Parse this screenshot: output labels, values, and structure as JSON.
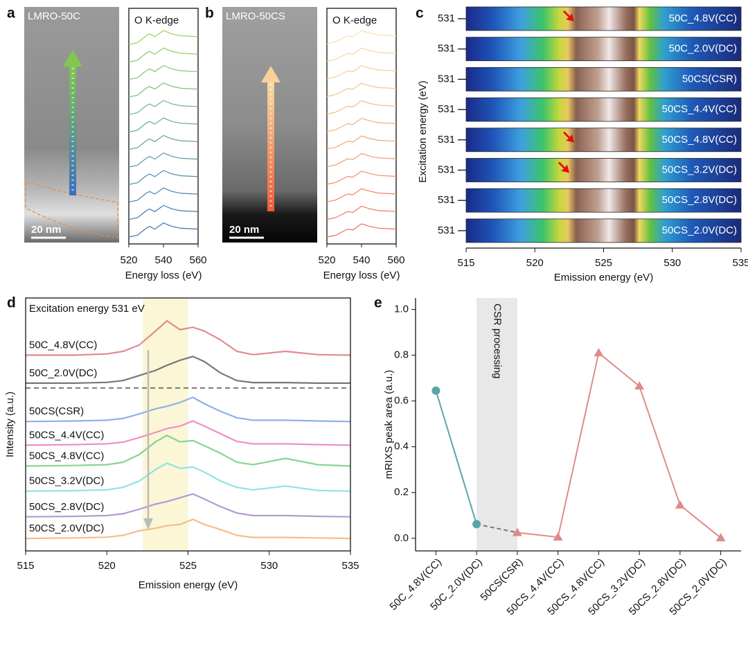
{
  "chart_data": [
    {
      "type": "image-spectra",
      "panel": "a",
      "image_label": "LMRO-50C",
      "scale_bar": "20 nm",
      "spectra_label": "O K-edge",
      "x": [
        520,
        525,
        530,
        532,
        535,
        540,
        545,
        550,
        560
      ],
      "xlim": [
        520,
        560
      ],
      "xticks": [
        520,
        540,
        560
      ],
      "xlabel": "Energy loss (eV)",
      "series": [
        {
          "color": "#3f6fb0",
          "values": [
            0,
            0.1,
            0.5,
            0.6,
            0.45,
            0.8,
            0.6,
            0.5,
            0.45
          ]
        },
        {
          "color": "#4478b0",
          "values": [
            1,
            1.1,
            1.5,
            1.6,
            1.45,
            1.8,
            1.6,
            1.5,
            1.45
          ]
        },
        {
          "color": "#4a83ae",
          "values": [
            2,
            2.1,
            2.5,
            2.6,
            2.45,
            2.8,
            2.6,
            2.5,
            2.45
          ]
        },
        {
          "color": "#4f8dab",
          "values": [
            3,
            3.1,
            3.5,
            3.6,
            3.45,
            3.8,
            3.6,
            3.5,
            3.45
          ]
        },
        {
          "color": "#5598a7",
          "values": [
            4,
            4.1,
            4.5,
            4.6,
            4.45,
            4.8,
            4.6,
            4.5,
            4.45
          ]
        },
        {
          "color": "#5ba3a0",
          "values": [
            5,
            5.1,
            5.5,
            5.6,
            5.45,
            5.8,
            5.6,
            5.5,
            5.45
          ]
        },
        {
          "color": "#62ad96",
          "values": [
            6,
            6.1,
            6.5,
            6.6,
            6.45,
            6.8,
            6.6,
            6.5,
            6.45
          ]
        },
        {
          "color": "#6bb68a",
          "values": [
            7,
            7.1,
            7.5,
            7.6,
            7.45,
            7.8,
            7.6,
            7.5,
            7.45
          ]
        },
        {
          "color": "#75be7d",
          "values": [
            8,
            8.1,
            8.5,
            8.6,
            8.45,
            8.8,
            8.6,
            8.5,
            8.45
          ]
        },
        {
          "color": "#80c46f",
          "values": [
            9,
            9.1,
            9.5,
            9.6,
            9.45,
            9.8,
            9.6,
            9.5,
            9.45
          ]
        },
        {
          "color": "#8bca62",
          "values": [
            10,
            10.1,
            10.5,
            10.6,
            10.45,
            10.8,
            10.6,
            10.5,
            10.45
          ]
        },
        {
          "color": "#96cf57",
          "values": [
            11,
            11.1,
            11.5,
            11.6,
            11.45,
            11.8,
            11.6,
            11.5,
            11.45
          ]
        }
      ]
    },
    {
      "type": "image-spectra",
      "panel": "b",
      "image_label": "LMRO-50CS",
      "scale_bar": "20 nm",
      "spectra_label": "O K-edge",
      "x": [
        520,
        525,
        530,
        532,
        535,
        540,
        545,
        550,
        560
      ],
      "xlim": [
        520,
        560
      ],
      "xticks": [
        520,
        540,
        560
      ],
      "xlabel": "Energy loss (eV)",
      "series": [
        {
          "color": "#ef6b5a",
          "values": [
            0,
            0.1,
            0.35,
            0.45,
            0.4,
            0.75,
            0.6,
            0.5,
            0.45
          ]
        },
        {
          "color": "#f0775e",
          "values": [
            1,
            1.1,
            1.35,
            1.45,
            1.4,
            1.75,
            1.6,
            1.5,
            1.45
          ]
        },
        {
          "color": "#f18362",
          "values": [
            2,
            2.1,
            2.35,
            2.45,
            2.4,
            2.75,
            2.6,
            2.5,
            2.45
          ]
        },
        {
          "color": "#f28f67",
          "values": [
            3,
            3.1,
            3.35,
            3.45,
            3.4,
            3.75,
            3.6,
            3.5,
            3.45
          ]
        },
        {
          "color": "#f39b6c",
          "values": [
            4,
            4.1,
            4.35,
            4.45,
            4.4,
            4.75,
            4.6,
            4.5,
            4.45
          ]
        },
        {
          "color": "#f4a672",
          "values": [
            5,
            5.1,
            5.35,
            5.45,
            5.4,
            5.75,
            5.6,
            5.5,
            5.45
          ]
        },
        {
          "color": "#f5b078",
          "values": [
            6,
            6.1,
            6.35,
            6.45,
            6.4,
            6.75,
            6.6,
            6.5,
            6.45
          ]
        },
        {
          "color": "#f5ba7f",
          "values": [
            7,
            7.1,
            7.35,
            7.45,
            7.4,
            7.75,
            7.6,
            7.5,
            7.45
          ]
        },
        {
          "color": "#f6c487",
          "values": [
            8,
            8.1,
            8.35,
            8.45,
            8.4,
            8.75,
            8.6,
            8.5,
            8.45
          ]
        },
        {
          "color": "#f7cd90",
          "values": [
            9,
            9.1,
            9.35,
            9.45,
            9.4,
            9.75,
            9.6,
            9.5,
            9.45
          ]
        },
        {
          "color": "#f7d69a",
          "values": [
            10,
            10.1,
            10.35,
            10.45,
            10.4,
            10.75,
            10.6,
            10.5,
            10.45
          ]
        },
        {
          "color": "#f8dfa6",
          "values": [
            11,
            11.1,
            11.35,
            11.45,
            11.4,
            11.75,
            11.6,
            11.5,
            11.45
          ]
        }
      ]
    },
    {
      "type": "heatmap",
      "panel": "c",
      "rows": [
        "50C_4.8V(CC)",
        "50C_2.0V(DC)",
        "50CS(CSR)",
        "50CS_4.4V(CC)",
        "50CS_4.8V(CC)",
        "50CS_3.2V(DC)",
        "50CS_2.8V(DC)",
        "50CS_2.0V(DC)"
      ],
      "row_values": [
        531,
        531,
        531,
        531,
        531,
        531,
        531,
        531
      ],
      "xlim": [
        515,
        535
      ],
      "xticks": [
        515,
        520,
        525,
        530,
        535
      ],
      "xlabel": "Emission energy (eV)",
      "ylabel": "Excitation energy (eV)"
    },
    {
      "type": "line",
      "panel": "d",
      "title": "Excitation energy 531 eV",
      "x": [
        515,
        518,
        520,
        521,
        522,
        523,
        523.7,
        524.5,
        525.3,
        526,
        527,
        528,
        529,
        531,
        533,
        535
      ],
      "xlim": [
        515,
        535
      ],
      "xticks": [
        515,
        520,
        525,
        530,
        535
      ],
      "xlabel": "Emission energy (eV)",
      "ylabel": "Intensity (a.u.)",
      "highlight": [
        522.2,
        525
      ],
      "hline": 6.44,
      "series": [
        {
          "name": "50C_4.8V(CC)",
          "color": "#e08a8f",
          "values": [
            7.73,
            7.73,
            7.78,
            7.88,
            8.13,
            8.68,
            9.08,
            8.73,
            8.83,
            8.68,
            8.33,
            7.88,
            7.75,
            7.88,
            7.75,
            7.73
          ]
        },
        {
          "name": "50C_2.0V(DC)",
          "color": "#777777",
          "values": [
            6.63,
            6.63,
            6.66,
            6.73,
            6.93,
            7.13,
            7.33,
            7.53,
            7.68,
            7.48,
            7.03,
            6.73,
            6.65,
            6.65,
            6.63,
            6.63
          ]
        },
        {
          "name": "50CS(CSR)",
          "color": "#8fb0e6",
          "values": [
            5.12,
            5.14,
            5.17,
            5.24,
            5.42,
            5.62,
            5.72,
            5.87,
            6.07,
            5.82,
            5.52,
            5.27,
            5.17,
            5.17,
            5.14,
            5.12
          ]
        },
        {
          "name": "50CS_4.4V(CC)",
          "color": "#ee8fc8",
          "values": [
            4.19,
            4.21,
            4.24,
            4.31,
            4.49,
            4.69,
            4.84,
            4.94,
            5.14,
            4.94,
            4.64,
            4.34,
            4.24,
            4.24,
            4.21,
            4.19
          ]
        },
        {
          "name": "50CS_4.8V(CC)",
          "color": "#86d68f",
          "values": [
            3.37,
            3.39,
            3.42,
            3.52,
            3.82,
            4.32,
            4.57,
            4.32,
            4.37,
            4.17,
            3.87,
            3.52,
            3.42,
            3.67,
            3.42,
            3.37
          ]
        },
        {
          "name": "50CS_3.2V(DC)",
          "color": "#8ee3e6",
          "values": [
            2.38,
            2.4,
            2.43,
            2.53,
            2.78,
            3.23,
            3.48,
            3.28,
            3.33,
            3.13,
            2.78,
            2.53,
            2.43,
            2.58,
            2.41,
            2.38
          ]
        },
        {
          "name": "50CS_2.8V(DC)",
          "color": "#b39ad3",
          "values": [
            1.37,
            1.39,
            1.42,
            1.49,
            1.67,
            1.87,
            1.97,
            2.12,
            2.27,
            2.07,
            1.77,
            1.52,
            1.42,
            1.42,
            1.39,
            1.37
          ]
        },
        {
          "name": "50CS_2.0V(DC)",
          "color": "#f3bd8f",
          "values": [
            0.52,
            0.54,
            0.57,
            0.64,
            0.82,
            0.92,
            1.02,
            1.07,
            1.27,
            1.07,
            0.87,
            0.64,
            0.56,
            0.56,
            0.54,
            0.52
          ]
        }
      ]
    },
    {
      "type": "scatter-line",
      "panel": "e",
      "annotation": "CSR processing",
      "ylabel": "mRIXS peak area (a.u.)",
      "categories": [
        "50C_4.8V(CC)",
        "50C_2.0V(DC)",
        "50CS(CSR)",
        "50CS_4.4V(CC)",
        "50CS_4.8V(CC)",
        "50CS_3.2V(DC)",
        "50CS_2.8V(DC)",
        "50CS_2.0V(DC)"
      ],
      "ylim": [
        -0.055,
        1.05
      ],
      "yticks": [
        {
          "value": 0,
          "label": "0.0"
        },
        {
          "value": 0.2,
          "label": "0.2"
        },
        {
          "value": 0.4,
          "label": "0.4"
        },
        {
          "value": 0.6,
          "label": "0.6"
        },
        {
          "value": 0.8,
          "label": "0.8"
        },
        {
          "value": 1,
          "label": "1.0"
        }
      ],
      "series": [
        {
          "color": "#5aa6a6",
          "marker": "circle",
          "values": [
            0.645,
            0.062,
            null,
            null,
            null,
            null,
            null,
            null
          ]
        },
        {
          "color": "#e08a8a",
          "marker": "triangle",
          "values": [
            null,
            null,
            0.025,
            0.005,
            0.81,
            0.665,
            0.145,
            0.002
          ]
        }
      ]
    }
  ]
}
